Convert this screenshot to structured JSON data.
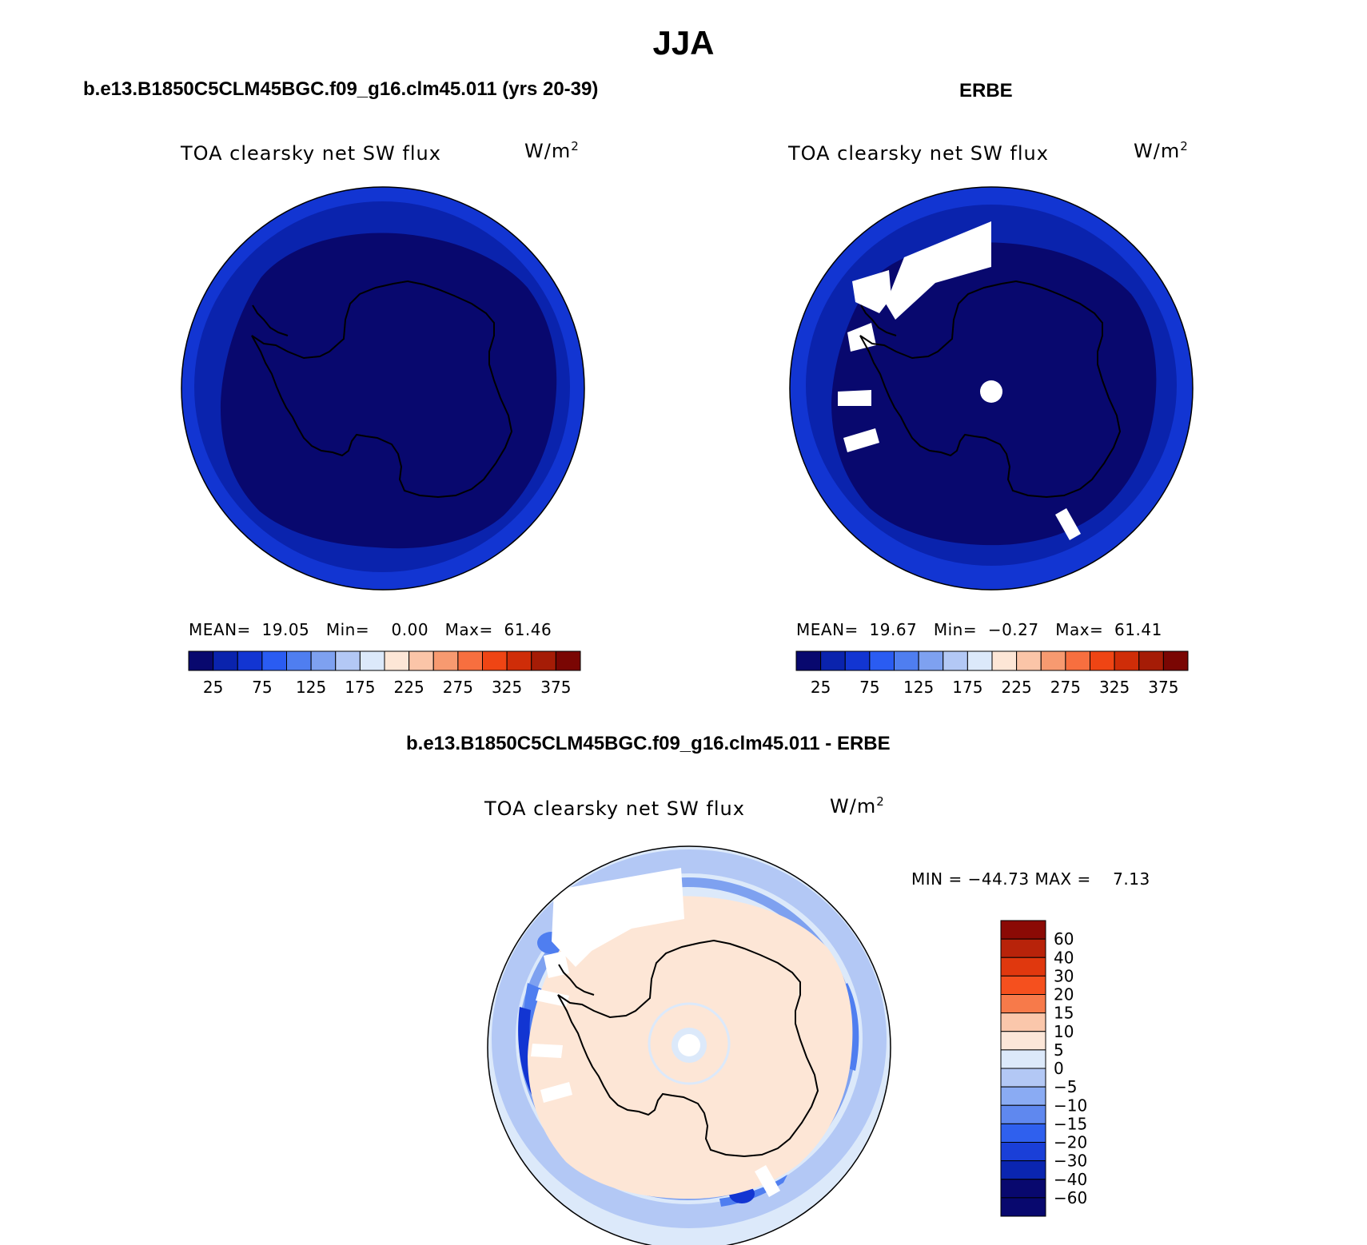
{
  "main_title": "JJA",
  "panels": [
    {
      "title": "b.e13.B1850C5CLM45BGC.f09_g16.clm45.011 (yrs 20-39)",
      "variable": "TOA clearsky net SW flux",
      "units_base": "W/m",
      "units_exp": "2",
      "stats": {
        "mean_label": "MEAN=",
        "mean": "19.05",
        "min_label": "Min=",
        "min": "0.00",
        "max_label": "Max=",
        "max": "61.46"
      }
    },
    {
      "title": "ERBE",
      "variable": "TOA clearsky net SW flux",
      "units_base": "W/m",
      "units_exp": "2",
      "stats": {
        "mean_label": "MEAN=",
        "mean": "19.67",
        "min_label": "Min=",
        "min": "−0.27",
        "max_label": "Max=",
        "max": "61.41"
      }
    },
    {
      "title": "b.e13.B1850C5CLM45BGC.f09_g16.clm45.011 - ERBE",
      "variable": "TOA clearsky net SW flux",
      "units_base": "W/m",
      "units_exp": "2",
      "minmax": "MIN = −44.73 MAX =    7.13"
    }
  ],
  "colorbar_abs": {
    "colors": [
      "#08086e",
      "#0a23ad",
      "#1235d2",
      "#2a5cf2",
      "#4f7ef0",
      "#7ea1f0",
      "#b3c8f5",
      "#dce9fa",
      "#fde6d6",
      "#fbc5a8",
      "#f79a70",
      "#f76f3f",
      "#ef4514",
      "#cf2d08",
      "#a51c06",
      "#7a0603"
    ],
    "labels": [
      "25",
      "75",
      "125",
      "175",
      "225",
      "275",
      "325",
      "375"
    ]
  },
  "colorbar_diff": {
    "colors_top_to_bottom": [
      "#8b0a05",
      "#b8230a",
      "#e0380e",
      "#f5501e",
      "#f77a4a",
      "#fac7ab",
      "#fbe6d8",
      "#dce9fa",
      "#b3c8f5",
      "#8aabf3",
      "#5f88ef",
      "#2f60ee",
      "#1a3fd8",
      "#0a25b0",
      "#08086e"
    ],
    "labels": [
      "60",
      "40",
      "30",
      "20",
      "15",
      "10",
      "5",
      "0",
      "−5",
      "−10",
      "−15",
      "−20",
      "−30",
      "−40",
      "−60"
    ]
  },
  "maps": {
    "ocean_outer": "#1235d2",
    "ocean_mid": "#0a23ad",
    "interior": "#08086e",
    "missing": "#ffffff",
    "diff_background": "#dce9fa",
    "diff_land": "#fde6d6",
    "diff_moderate": "#b3c8f5",
    "diff_strong": "#7ea1f0",
    "diff_stronger": "#4f7ef0",
    "diff_extreme": "#1235d2"
  }
}
